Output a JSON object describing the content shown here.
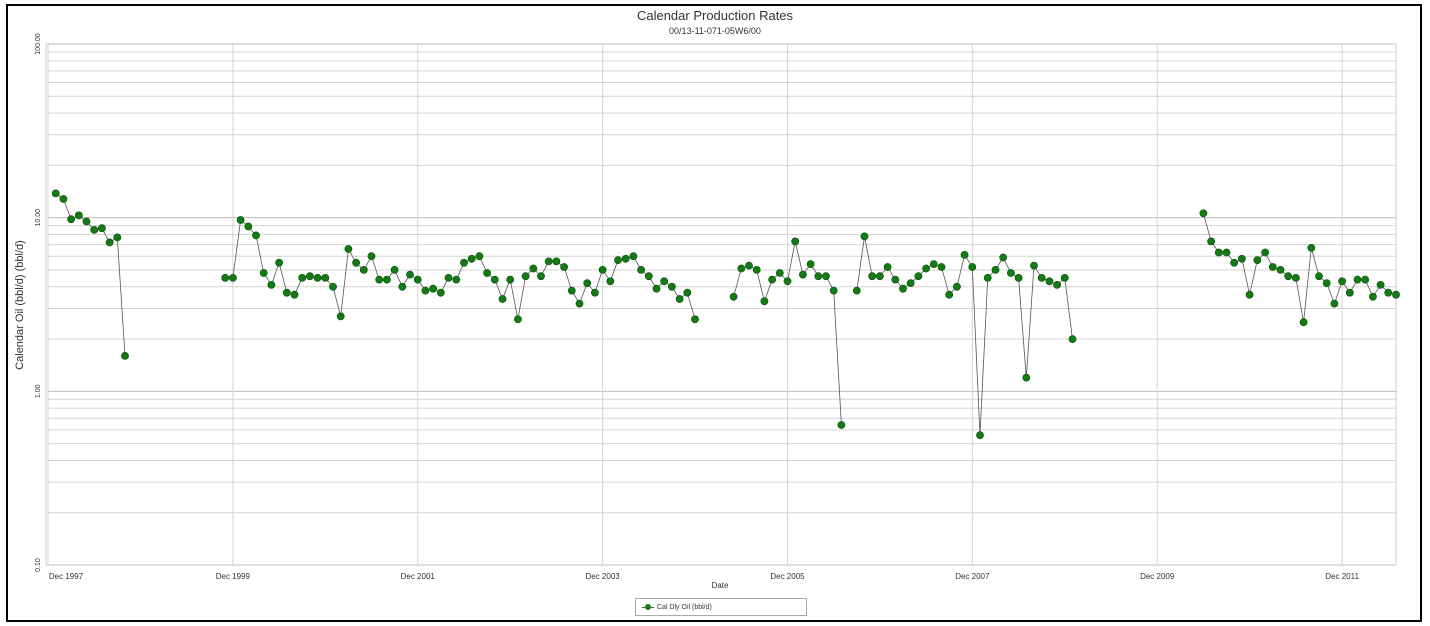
{
  "chart_data": {
    "type": "scatter",
    "title": "Calendar Production Rates",
    "subtitle": "00/13-11-071-05W6/00",
    "xlabel": "Date",
    "ylabel": "Calendar Oil (bbl/d) (bbl/d)",
    "y_scale": "log",
    "ylim": [
      0.1,
      100
    ],
    "y_ticks": [
      {
        "value": 0.1,
        "label": "0.10"
      },
      {
        "value": 1,
        "label": "1.00"
      },
      {
        "value": 10,
        "label": "10.00"
      },
      {
        "value": 100,
        "label": "100.00"
      }
    ],
    "x_ticks": [
      {
        "value": "1997-12",
        "label": "Dec 1997"
      },
      {
        "value": "1999-12",
        "label": "Dec 1999"
      },
      {
        "value": "2001-12",
        "label": "Dec 2001"
      },
      {
        "value": "2003-12",
        "label": "Dec 2003"
      },
      {
        "value": "2005-12",
        "label": "Dec 2005"
      },
      {
        "value": "2007-12",
        "label": "Dec 2007"
      },
      {
        "value": "2009-12",
        "label": "Dec 2009"
      },
      {
        "value": "2011-12",
        "label": "Dec 2011"
      }
    ],
    "xlim": [
      "1997-12",
      "2012-07"
    ],
    "grid": true,
    "legend_position": "bottom-center",
    "colors": {
      "marker": "#147a14",
      "line": "#555555",
      "grid": "#d4d4d4"
    },
    "series": [
      {
        "name": "Cal Dly Oil (bbl/d)",
        "points": [
          [
            "1998-01",
            13.8
          ],
          [
            "1998-02",
            12.8
          ],
          [
            "1998-03",
            9.8
          ],
          [
            "1998-04",
            10.3
          ],
          [
            "1998-05",
            9.5
          ],
          [
            "1998-06",
            8.5
          ],
          [
            "1998-07",
            8.7
          ],
          [
            "1998-08",
            7.2
          ],
          [
            "1998-09",
            7.7
          ],
          [
            "1998-10",
            1.6
          ],
          null,
          [
            "1999-11",
            4.5
          ],
          [
            "1999-12",
            4.5
          ],
          [
            "2000-01",
            9.7
          ],
          [
            "2000-02",
            8.9
          ],
          [
            "2000-03",
            7.9
          ],
          [
            "2000-04",
            4.8
          ],
          [
            "2000-05",
            4.1
          ],
          [
            "2000-06",
            5.5
          ],
          [
            "2000-07",
            3.7
          ],
          [
            "2000-08",
            3.6
          ],
          [
            "2000-09",
            4.5
          ],
          [
            "2000-10",
            4.6
          ],
          [
            "2000-11",
            4.5
          ],
          [
            "2000-12",
            4.5
          ],
          [
            "2001-01",
            4.0
          ],
          [
            "2001-02",
            2.7
          ],
          [
            "2001-03",
            6.6
          ],
          [
            "2001-04",
            5.5
          ],
          [
            "2001-05",
            5.0
          ],
          [
            "2001-06",
            6.0
          ],
          [
            "2001-07",
            4.4
          ],
          [
            "2001-08",
            4.4
          ],
          [
            "2001-09",
            5.0
          ],
          [
            "2001-10",
            4.0
          ],
          [
            "2001-11",
            4.7
          ],
          [
            "2001-12",
            4.4
          ],
          [
            "2002-01",
            3.8
          ],
          [
            "2002-02",
            3.9
          ],
          [
            "2002-03",
            3.7
          ],
          [
            "2002-04",
            4.5
          ],
          [
            "2002-05",
            4.4
          ],
          [
            "2002-06",
            5.5
          ],
          [
            "2002-07",
            5.8
          ],
          [
            "2002-08",
            6.0
          ],
          [
            "2002-09",
            4.8
          ],
          [
            "2002-10",
            4.4
          ],
          [
            "2002-11",
            3.4
          ],
          [
            "2002-12",
            4.4
          ],
          [
            "2003-01",
            2.6
          ],
          [
            "2003-02",
            4.6
          ],
          [
            "2003-03",
            5.1
          ],
          [
            "2003-04",
            4.6
          ],
          [
            "2003-05",
            5.6
          ],
          [
            "2003-06",
            5.6
          ],
          [
            "2003-07",
            5.2
          ],
          [
            "2003-08",
            3.8
          ],
          [
            "2003-09",
            3.2
          ],
          [
            "2003-10",
            4.2
          ],
          [
            "2003-11",
            3.7
          ],
          [
            "2003-12",
            5.0
          ],
          [
            "2004-01",
            4.3
          ],
          [
            "2004-02",
            5.7
          ],
          [
            "2004-03",
            5.8
          ],
          [
            "2004-04",
            6.0
          ],
          [
            "2004-05",
            5.0
          ],
          [
            "2004-06",
            4.6
          ],
          [
            "2004-07",
            3.9
          ],
          [
            "2004-08",
            4.3
          ],
          [
            "2004-09",
            4.0
          ],
          [
            "2004-10",
            3.4
          ],
          [
            "2004-11",
            3.7
          ],
          [
            "2004-12",
            2.6
          ],
          null,
          [
            "2005-05",
            3.5
          ],
          [
            "2005-06",
            5.1
          ],
          [
            "2005-07",
            5.3
          ],
          [
            "2005-08",
            5.0
          ],
          [
            "2005-09",
            3.3
          ],
          [
            "2005-10",
            4.4
          ],
          [
            "2005-11",
            4.8
          ],
          [
            "2005-12",
            4.3
          ],
          [
            "2006-01",
            7.3
          ],
          [
            "2006-02",
            4.7
          ],
          [
            "2006-03",
            5.4
          ],
          [
            "2006-04",
            4.6
          ],
          [
            "2006-05",
            4.6
          ],
          [
            "2006-06",
            3.8
          ],
          [
            "2006-07",
            0.64
          ],
          null,
          [
            "2006-09",
            3.8
          ],
          [
            "2006-10",
            7.8
          ],
          [
            "2006-11",
            4.6
          ],
          [
            "2006-12",
            4.6
          ],
          [
            "2007-01",
            5.2
          ],
          [
            "2007-02",
            4.4
          ],
          [
            "2007-03",
            3.9
          ],
          [
            "2007-04",
            4.2
          ],
          [
            "2007-05",
            4.6
          ],
          [
            "2007-06",
            5.1
          ],
          [
            "2007-07",
            5.4
          ],
          [
            "2007-08",
            5.2
          ],
          [
            "2007-09",
            3.6
          ],
          [
            "2007-10",
            4.0
          ],
          [
            "2007-11",
            6.1
          ],
          [
            "2007-12",
            5.2
          ],
          [
            "2008-01",
            0.56
          ],
          [
            "2008-02",
            4.5
          ],
          [
            "2008-03",
            5.0
          ],
          [
            "2008-04",
            5.9
          ],
          [
            "2008-05",
            4.8
          ],
          [
            "2008-06",
            4.5
          ],
          [
            "2008-07",
            1.2
          ],
          [
            "2008-08",
            5.3
          ],
          [
            "2008-09",
            4.5
          ],
          [
            "2008-10",
            4.3
          ],
          [
            "2008-11",
            4.1
          ],
          [
            "2008-12",
            4.5
          ],
          [
            "2009-01",
            2.0
          ],
          null,
          [
            "2010-06",
            10.6
          ],
          [
            "2010-07",
            7.3
          ],
          [
            "2010-08",
            6.3
          ],
          [
            "2010-09",
            6.3
          ],
          [
            "2010-10",
            5.5
          ],
          [
            "2010-11",
            5.8
          ],
          [
            "2010-12",
            3.6
          ],
          [
            "2011-01",
            5.7
          ],
          [
            "2011-02",
            6.3
          ],
          [
            "2011-03",
            5.2
          ],
          [
            "2011-04",
            5.0
          ],
          [
            "2011-05",
            4.6
          ],
          [
            "2011-06",
            4.5
          ],
          [
            "2011-07",
            2.5
          ],
          [
            "2011-08",
            6.7
          ],
          [
            "2011-09",
            4.6
          ],
          [
            "2011-10",
            4.2
          ],
          [
            "2011-11",
            3.2
          ],
          [
            "2011-12",
            4.3
          ],
          [
            "2012-01",
            3.7
          ],
          [
            "2012-02",
            4.4
          ],
          [
            "2012-03",
            4.4
          ],
          [
            "2012-04",
            3.5
          ],
          [
            "2012-05",
            4.1
          ],
          [
            "2012-06",
            3.7
          ],
          [
            "2012-07",
            3.6
          ]
        ]
      }
    ]
  }
}
